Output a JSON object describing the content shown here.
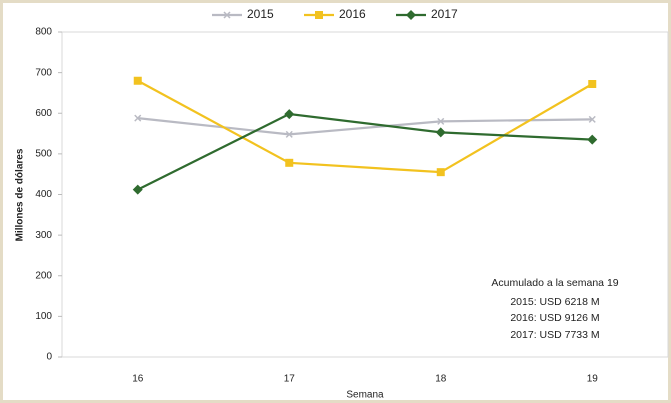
{
  "chart_data": {
    "type": "line",
    "categories": [
      "16",
      "17",
      "18",
      "19"
    ],
    "series": [
      {
        "name": "2015",
        "color": "#b9bac3",
        "marker": "x",
        "values": [
          588,
          548,
          580,
          585
        ]
      },
      {
        "name": "2016",
        "color": "#f2c21f",
        "marker": "square",
        "values": [
          680,
          478,
          455,
          672
        ]
      },
      {
        "name": "2017",
        "color": "#2f6b2f",
        "marker": "diamond",
        "values": [
          412,
          598,
          553,
          535
        ]
      }
    ],
    "ylim": [
      0,
      800
    ],
    "yticks": [
      0,
      100,
      200,
      300,
      400,
      500,
      600,
      700,
      800
    ],
    "ylabel": "Millones de dólares",
    "xlabel": "Semana",
    "annotations": [
      "Acumulado a la semana 19",
      "2015: USD 6218 M",
      "2016: USD 9126 M",
      "2017: USD 7733 M"
    ],
    "legend": "top"
  }
}
